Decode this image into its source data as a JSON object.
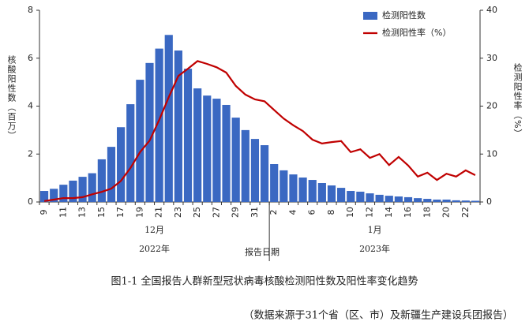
{
  "chart_data": {
    "type": "bar-line",
    "y_label": "核酸阳性数（百万）",
    "y2_label": "检测阳性率（%）",
    "x_label": "报告日期",
    "x_groups": [
      {
        "month": "12月",
        "year": "2022年"
      },
      {
        "month": "1月",
        "year": "2023年"
      }
    ],
    "caption": "图1-1  全国报告人群新型冠状病毒核酸检测阳性数及阳性率变化趋势",
    "source": "（数据来源于31个省（区、市）及新疆生产建设兵团报告）",
    "categories": [
      "9",
      null,
      "11",
      null,
      "13",
      null,
      "15",
      null,
      "17",
      null,
      "19",
      null,
      "21",
      null,
      "23",
      null,
      "25",
      null,
      "27",
      null,
      "29",
      null,
      "31",
      null,
      "2",
      null,
      "4",
      null,
      "6",
      null,
      "8",
      null,
      "10",
      null,
      "12",
      null,
      "14",
      null,
      "16",
      null,
      "18",
      null,
      "20",
      null,
      "22",
      null
    ],
    "series": [
      {
        "name": "检测阳性数",
        "type": "bar",
        "color": "#3a68c2",
        "values": [
          0.46,
          0.55,
          0.72,
          0.89,
          1.05,
          1.2,
          1.78,
          2.3,
          3.12,
          4.08,
          5.1,
          5.8,
          6.4,
          6.97,
          6.32,
          5.56,
          4.74,
          4.44,
          4.31,
          4.05,
          3.52,
          3.0,
          2.63,
          2.37,
          1.58,
          1.32,
          1.15,
          1.02,
          0.92,
          0.79,
          0.69,
          0.59,
          0.46,
          0.43,
          0.36,
          0.3,
          0.26,
          0.23,
          0.2,
          0.16,
          0.13,
          0.1,
          0.1,
          0.07,
          0.06,
          0.05
        ]
      },
      {
        "name": "检测阳性率（%）",
        "type": "line",
        "axis": "y2",
        "color": "#c00000",
        "values": [
          0.2,
          0.5,
          0.8,
          0.8,
          1.0,
          1.6,
          2.1,
          2.8,
          4.4,
          7.1,
          10.4,
          12.8,
          17.1,
          21.9,
          26.3,
          27.8,
          29.4,
          28.8,
          28.1,
          27.0,
          24.2,
          22.4,
          21.4,
          21.0,
          19.2,
          17.4,
          16.0,
          14.8,
          13.0,
          12.2,
          12.5,
          12.7,
          10.4,
          11.0,
          9.2,
          10.0,
          7.7,
          9.4,
          7.6,
          5.3,
          6.1,
          4.6,
          5.9,
          5.3,
          6.6,
          5.6
        ]
      }
    ],
    "ylim": [
      0,
      8
    ],
    "yticks": [
      0,
      2,
      4,
      6,
      8
    ],
    "y2lim": [
      0,
      40
    ],
    "y2ticks": [
      0,
      10,
      20,
      30,
      40
    ],
    "legend": "top-right"
  }
}
